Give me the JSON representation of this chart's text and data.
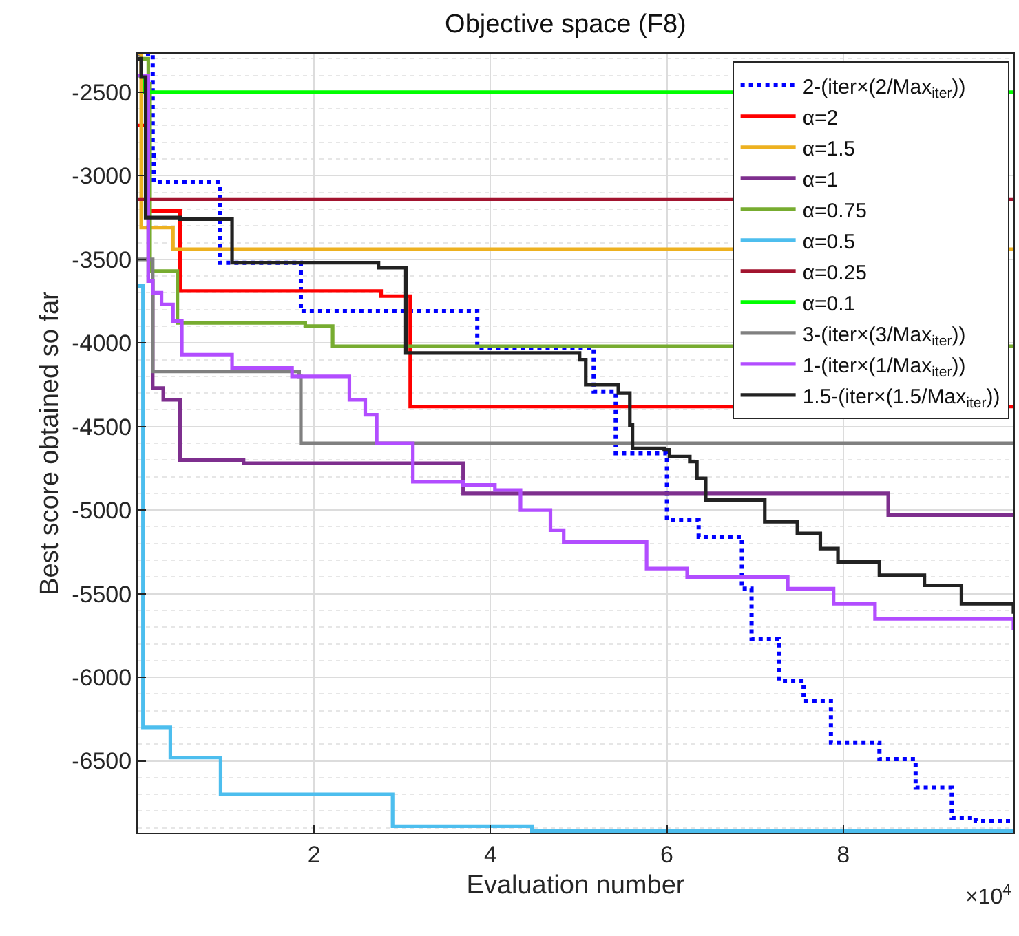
{
  "chart_data": {
    "type": "step",
    "title": "Objective space (F8)",
    "xlabel": "Evaluation number",
    "ylabel": "Best score obtained so far",
    "annotations": [
      "×10$^{4}$"
    ],
    "xlim": [
      0,
      9.93
    ],
    "xticks": [
      2,
      4,
      6,
      8
    ],
    "ylim": [
      -6930,
      -2270
    ],
    "yticks": [
      -2500,
      -3000,
      -3500,
      -4000,
      -4500,
      -5000,
      -5500,
      -6000,
      -6500
    ],
    "grid": true,
    "legend": "top right",
    "marker": "none",
    "line_style": "solid",
    "series": [
      {
        "name": "2-(iter×(2/Max$_{iter}$))",
        "color": "#0000ff",
        "line_style": "dotted",
        "x": [
          0,
          0.17,
          0.18,
          0.93,
          1.85,
          3.85,
          5.17,
          5.42,
          5.58,
          6.0,
          6.36,
          6.85,
          6.96,
          7.27,
          7.55,
          7.86,
          8.41,
          8.82,
          9.23,
          9.5,
          9.93
        ],
        "values": [
          -2270,
          -2850,
          -3040,
          -3520,
          -3810,
          -4030,
          -4290,
          -4660,
          -4660,
          -5060,
          -5160,
          -5470,
          -5770,
          -6020,
          -6140,
          -6390,
          -6490,
          -6660,
          -6840,
          -6860,
          -6860
        ]
      },
      {
        "name": "α=2",
        "color": "#ff0000",
        "x": [
          0,
          0.12,
          0.48,
          2.76,
          3.09,
          9.93
        ],
        "values": [
          -2700,
          -3210,
          -3690,
          -3720,
          -4380,
          -4380
        ]
      },
      {
        "name": "α=1.5",
        "color": "#edb120",
        "x": [
          0,
          0.04,
          0.4,
          9.93
        ],
        "values": [
          -2270,
          -3310,
          -3440,
          -3440
        ]
      },
      {
        "name": "α=1",
        "color": "#7e2f8e",
        "x": [
          0,
          0.12,
          0.17,
          0.29,
          0.48,
          1.2,
          3.69,
          8.51,
          9.93
        ],
        "values": [
          -2400,
          -3630,
          -4270,
          -4340,
          -4700,
          -4720,
          -4900,
          -5030,
          -5030
        ]
      },
      {
        "name": "α=0.75",
        "color": "#77ac30",
        "x": [
          0,
          0.12,
          0.14,
          0.45,
          1.9,
          2.21,
          9.93
        ],
        "values": [
          -2300,
          -2450,
          -3570,
          -3880,
          -3900,
          -4020,
          -4020
        ]
      },
      {
        "name": "α=0.5",
        "color": "#4dbeee",
        "x": [
          0,
          0.06,
          0.37,
          0.94,
          2.89,
          4.47,
          9.93
        ],
        "values": [
          -3660,
          -6300,
          -6480,
          -6700,
          -6890,
          -6920,
          -6920
        ]
      },
      {
        "name": "α=0.25",
        "color": "#a2142f",
        "x": [
          0,
          9.93
        ],
        "values": [
          -3140,
          -3140
        ]
      },
      {
        "name": "α=0.1",
        "color": "#00ff00",
        "x": [
          0,
          0.08,
          9.93
        ],
        "values": [
          -2400,
          -2500,
          -2500
        ]
      },
      {
        "name": "3-(iter×(3/Max$_{iter}$))",
        "color": "#808080",
        "x": [
          0,
          0.17,
          1.83,
          1.85,
          9.93
        ],
        "values": [
          -3500,
          -4170,
          -4200,
          -4600,
          -4600
        ]
      },
      {
        "name": "1-(iter×(1/Max$_{iter}$))",
        "color": "#b24dff",
        "x": [
          0,
          0.12,
          0.17,
          0.27,
          0.4,
          0.5,
          1.07,
          1.75,
          2.4,
          2.58,
          2.71,
          3.12,
          3.69,
          4.05,
          4.34,
          4.68,
          4.83,
          5.77,
          6.23,
          7.37,
          7.89,
          8.36,
          9.93
        ],
        "values": [
          -2400,
          -3630,
          -3700,
          -3770,
          -3870,
          -4070,
          -4150,
          -4200,
          -4340,
          -4430,
          -4600,
          -4830,
          -4850,
          -4880,
          -5000,
          -5120,
          -5190,
          -5350,
          -5400,
          -5470,
          -5560,
          -5650,
          -5720
        ]
      },
      {
        "name": "1.5-(iter×(1.5/Max$_{iter}$))",
        "color": "#222222",
        "x": [
          0,
          0.04,
          0.09,
          0.48,
          1.07,
          2.73,
          3.04,
          5.01,
          5.08,
          5.45,
          5.58,
          5.61,
          5.97,
          6.03,
          6.26,
          6.34,
          6.44,
          7.11,
          7.48,
          7.74,
          7.94,
          8.41,
          8.92,
          9.34,
          9.93
        ],
        "values": [
          -2300,
          -2410,
          -3250,
          -3260,
          -3520,
          -3550,
          -4060,
          -4100,
          -4250,
          -4300,
          -4490,
          -4630,
          -4640,
          -4680,
          -4710,
          -4810,
          -4940,
          -5070,
          -5140,
          -5230,
          -5310,
          -5390,
          -5450,
          -5560,
          -5620
        ]
      }
    ]
  }
}
